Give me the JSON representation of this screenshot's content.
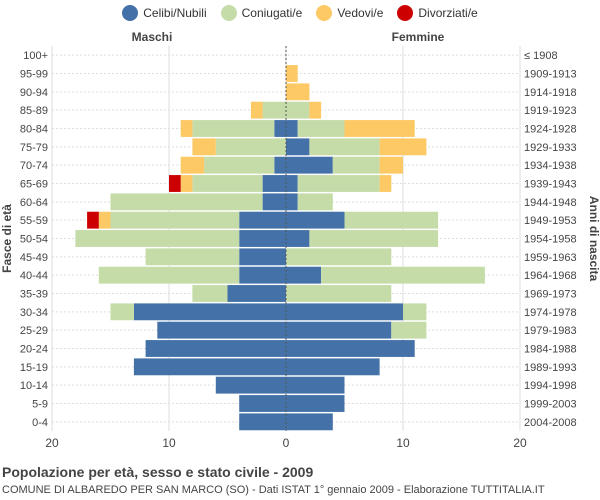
{
  "chart_data": {
    "type": "bar",
    "title": "Popolazione per età, sesso e stato civile - 2009",
    "subtitle": "COMUNE DI ALBAREDO PER SAN MARCO (SO) - Dati ISTAT 1° gennaio 2009 - Elaborazione TUTTITALIA.IT",
    "left_header": "Maschi",
    "right_header": "Femmine",
    "ylabel_left": "Fasce di età",
    "ylabel_right": "Anni di nascita",
    "xlim": [
      -20,
      20
    ],
    "xticks": [
      "20",
      "10",
      "0",
      "10",
      "20"
    ],
    "xtick_values": [
      -20,
      -10,
      0,
      10,
      20
    ],
    "age_groups": [
      "100+",
      "95-99",
      "90-94",
      "85-89",
      "80-84",
      "75-79",
      "70-74",
      "65-69",
      "60-64",
      "55-59",
      "50-54",
      "45-49",
      "40-44",
      "35-39",
      "30-34",
      "25-29",
      "20-24",
      "15-19",
      "10-14",
      "5-9",
      "0-4"
    ],
    "birth_years": [
      "≤ 1908",
      "1909-1913",
      "1914-1918",
      "1919-1923",
      "1924-1928",
      "1929-1933",
      "1934-1938",
      "1939-1943",
      "1944-1948",
      "1949-1953",
      "1954-1958",
      "1959-1963",
      "1964-1968",
      "1969-1973",
      "1974-1978",
      "1979-1983",
      "1984-1988",
      "1989-1993",
      "1994-1998",
      "1999-2003",
      "2004-2008"
    ],
    "series": [
      {
        "name": "Celibi/Nubili",
        "color": "#4472a8",
        "male": [
          0,
          0,
          0,
          0,
          1,
          0,
          1,
          2,
          2,
          4,
          4,
          4,
          4,
          5,
          13,
          11,
          12,
          13,
          6,
          4,
          4
        ],
        "female": [
          0,
          0,
          0,
          0,
          1,
          2,
          4,
          1,
          1,
          5,
          2,
          0,
          3,
          0,
          10,
          9,
          11,
          8,
          5,
          5,
          4
        ]
      },
      {
        "name": "Coniugati/e",
        "color": "#c5dca9",
        "male": [
          0,
          0,
          0,
          2,
          7,
          6,
          6,
          6,
          13,
          11,
          14,
          8,
          12,
          3,
          2,
          0,
          0,
          0,
          0,
          0,
          0
        ],
        "female": [
          0,
          0,
          0,
          2,
          4,
          6,
          4,
          7,
          3,
          8,
          11,
          9,
          14,
          9,
          2,
          3,
          0,
          0,
          0,
          0,
          0
        ],
        "_comment": ""
      },
      {
        "name": "Vedovi/e",
        "color": "#fdc965",
        "male": [
          0,
          0,
          0,
          1,
          1,
          2,
          2,
          1,
          0,
          1,
          0,
          0,
          0,
          0,
          0,
          0,
          0,
          0,
          0,
          0,
          0
        ],
        "female": [
          0,
          1,
          2,
          1,
          6,
          4,
          2,
          1,
          0,
          0,
          0,
          0,
          0,
          0,
          0,
          0,
          0,
          0,
          0,
          0,
          0
        ]
      },
      {
        "name": "Divorziati/e",
        "color": "#cc0000",
        "male": [
          0,
          0,
          0,
          0,
          0,
          0,
          0,
          1,
          0,
          1,
          0,
          0,
          0,
          0,
          0,
          0,
          0,
          0,
          0,
          0,
          0
        ],
        "female": [
          0,
          0,
          0,
          0,
          0,
          0,
          0,
          0,
          0,
          0,
          0,
          0,
          0,
          0,
          0,
          0,
          0,
          0,
          0,
          0,
          0
        ]
      }
    ]
  }
}
